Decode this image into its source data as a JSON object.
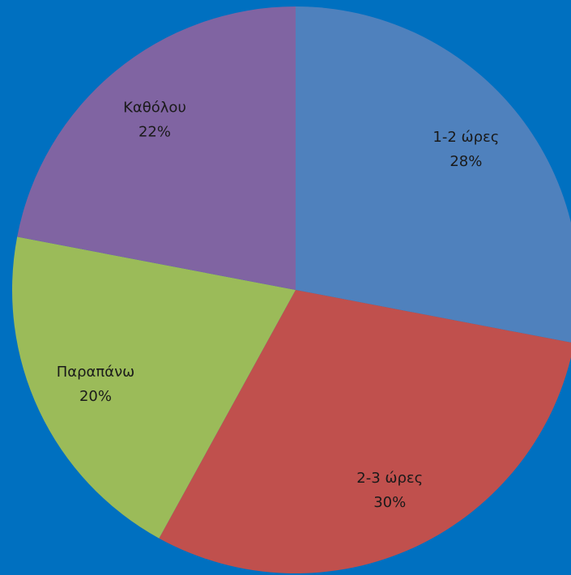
{
  "chart_data": {
    "type": "pie",
    "categories": [
      "1-2 ώρες",
      "2-3 ώρες",
      "Παραπάνω",
      "Καθόλου"
    ],
    "values": [
      28,
      30,
      20,
      22
    ],
    "value_labels": [
      "28%",
      "30%",
      "20%",
      "22%"
    ],
    "colors": [
      "#4f81bd",
      "#c0504d",
      "#9bbb59",
      "#8064a2"
    ],
    "background": "#0070c0"
  }
}
